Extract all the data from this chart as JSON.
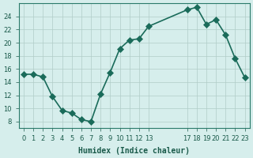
{
  "x": [
    0,
    1,
    2,
    3,
    4,
    5,
    6,
    7,
    8,
    9,
    10,
    11,
    12,
    13,
    17,
    18,
    19,
    20,
    21,
    22,
    23
  ],
  "y": [
    15.2,
    15.2,
    14.8,
    11.8,
    9.7,
    9.3,
    8.3,
    8.0,
    12.2,
    15.5,
    19.1,
    20.4,
    20.6,
    22.5,
    25.0,
    25.4,
    22.8,
    23.5,
    21.2,
    17.6,
    14.7
  ],
  "line_color": "#1a6b5a",
  "marker_color": "#1a6b5a",
  "bg_color": "#d6eeec",
  "grid_color": "#b0ccc8",
  "xlabel": "Humidex (Indice chaleur)",
  "ylim": [
    7,
    26
  ],
  "xlim": [
    -0.5,
    23.5
  ],
  "yticks": [
    8,
    10,
    12,
    14,
    16,
    18,
    20,
    22,
    24
  ],
  "xticks": [
    0,
    1,
    2,
    3,
    4,
    5,
    6,
    7,
    8,
    9,
    10,
    11,
    12,
    13,
    17,
    18,
    19,
    20,
    21,
    22,
    23
  ],
  "axis_color": "#2a7a6a",
  "font_color": "#1a5a4a",
  "marker_size": 4
}
